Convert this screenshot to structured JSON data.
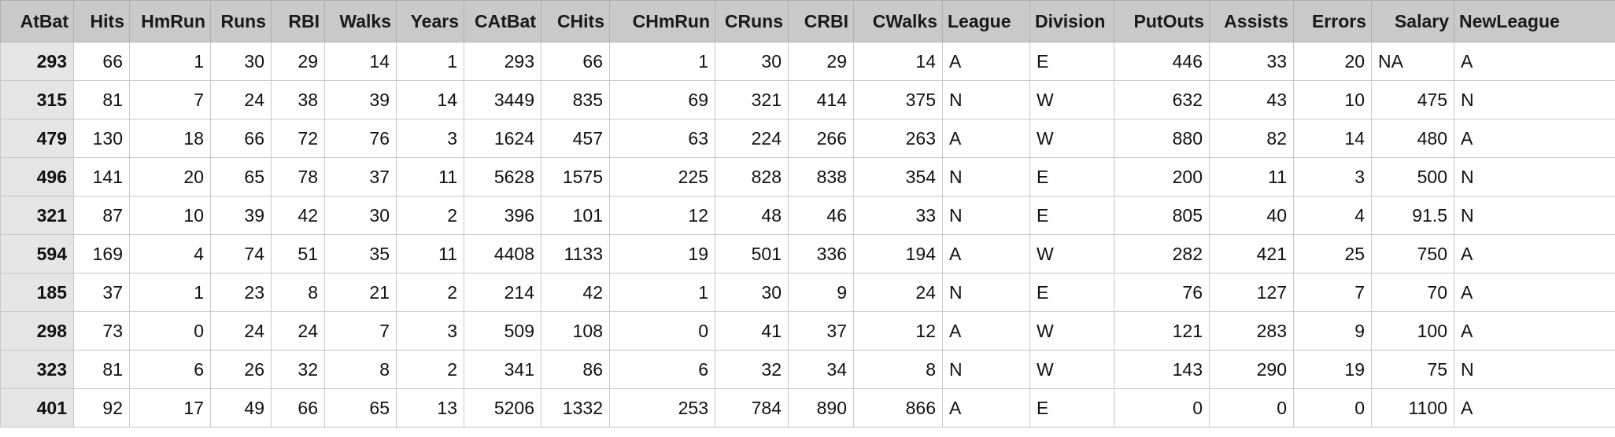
{
  "columns": [
    {
      "label": "AtBat",
      "align": "first"
    },
    {
      "label": "Hits",
      "align": "num"
    },
    {
      "label": "HmRun",
      "align": "num"
    },
    {
      "label": "Runs",
      "align": "num"
    },
    {
      "label": "RBI",
      "align": "num"
    },
    {
      "label": "Walks",
      "align": "num"
    },
    {
      "label": "Years",
      "align": "num"
    },
    {
      "label": "CAtBat",
      "align": "num"
    },
    {
      "label": "CHits",
      "align": "num"
    },
    {
      "label": "CHmRun",
      "align": "num"
    },
    {
      "label": "CRuns",
      "align": "num"
    },
    {
      "label": "CRBI",
      "align": "num"
    },
    {
      "label": "CWalks",
      "align": "num"
    },
    {
      "label": "League",
      "align": "txt"
    },
    {
      "label": "Division",
      "align": "txt"
    },
    {
      "label": "PutOuts",
      "align": "num"
    },
    {
      "label": "Assists",
      "align": "num"
    },
    {
      "label": "Errors",
      "align": "num"
    },
    {
      "label": "Salary",
      "align": "num"
    },
    {
      "label": "NewLeague",
      "align": "txt"
    }
  ],
  "rows": [
    [
      "293",
      "66",
      "1",
      "30",
      "29",
      "14",
      "1",
      "293",
      "66",
      "1",
      "30",
      "29",
      "14",
      "A",
      "E",
      "446",
      "33",
      "20",
      "NA",
      "A"
    ],
    [
      "315",
      "81",
      "7",
      "24",
      "38",
      "39",
      "14",
      "3449",
      "835",
      "69",
      "321",
      "414",
      "375",
      "N",
      "W",
      "632",
      "43",
      "10",
      "475",
      "N"
    ],
    [
      "479",
      "130",
      "18",
      "66",
      "72",
      "76",
      "3",
      "1624",
      "457",
      "63",
      "224",
      "266",
      "263",
      "A",
      "W",
      "880",
      "82",
      "14",
      "480",
      "A"
    ],
    [
      "496",
      "141",
      "20",
      "65",
      "78",
      "37",
      "11",
      "5628",
      "1575",
      "225",
      "828",
      "838",
      "354",
      "N",
      "E",
      "200",
      "11",
      "3",
      "500",
      "N"
    ],
    [
      "321",
      "87",
      "10",
      "39",
      "42",
      "30",
      "2",
      "396",
      "101",
      "12",
      "48",
      "46",
      "33",
      "N",
      "E",
      "805",
      "40",
      "4",
      "91.5",
      "N"
    ],
    [
      "594",
      "169",
      "4",
      "74",
      "51",
      "35",
      "11",
      "4408",
      "1133",
      "19",
      "501",
      "336",
      "194",
      "A",
      "W",
      "282",
      "421",
      "25",
      "750",
      "A"
    ],
    [
      "185",
      "37",
      "1",
      "23",
      "8",
      "21",
      "2",
      "214",
      "42",
      "1",
      "30",
      "9",
      "24",
      "N",
      "E",
      "76",
      "127",
      "7",
      "70",
      "A"
    ],
    [
      "298",
      "73",
      "0",
      "24",
      "24",
      "7",
      "3",
      "509",
      "108",
      "0",
      "41",
      "37",
      "12",
      "A",
      "W",
      "121",
      "283",
      "9",
      "100",
      "A"
    ],
    [
      "323",
      "81",
      "6",
      "26",
      "32",
      "8",
      "2",
      "341",
      "86",
      "6",
      "32",
      "34",
      "8",
      "N",
      "W",
      "143",
      "290",
      "19",
      "75",
      "N"
    ],
    [
      "401",
      "92",
      "17",
      "49",
      "66",
      "65",
      "13",
      "5206",
      "1332",
      "253",
      "784",
      "890",
      "866",
      "A",
      "E",
      "0",
      "0",
      "0",
      "1100",
      "A"
    ]
  ]
}
